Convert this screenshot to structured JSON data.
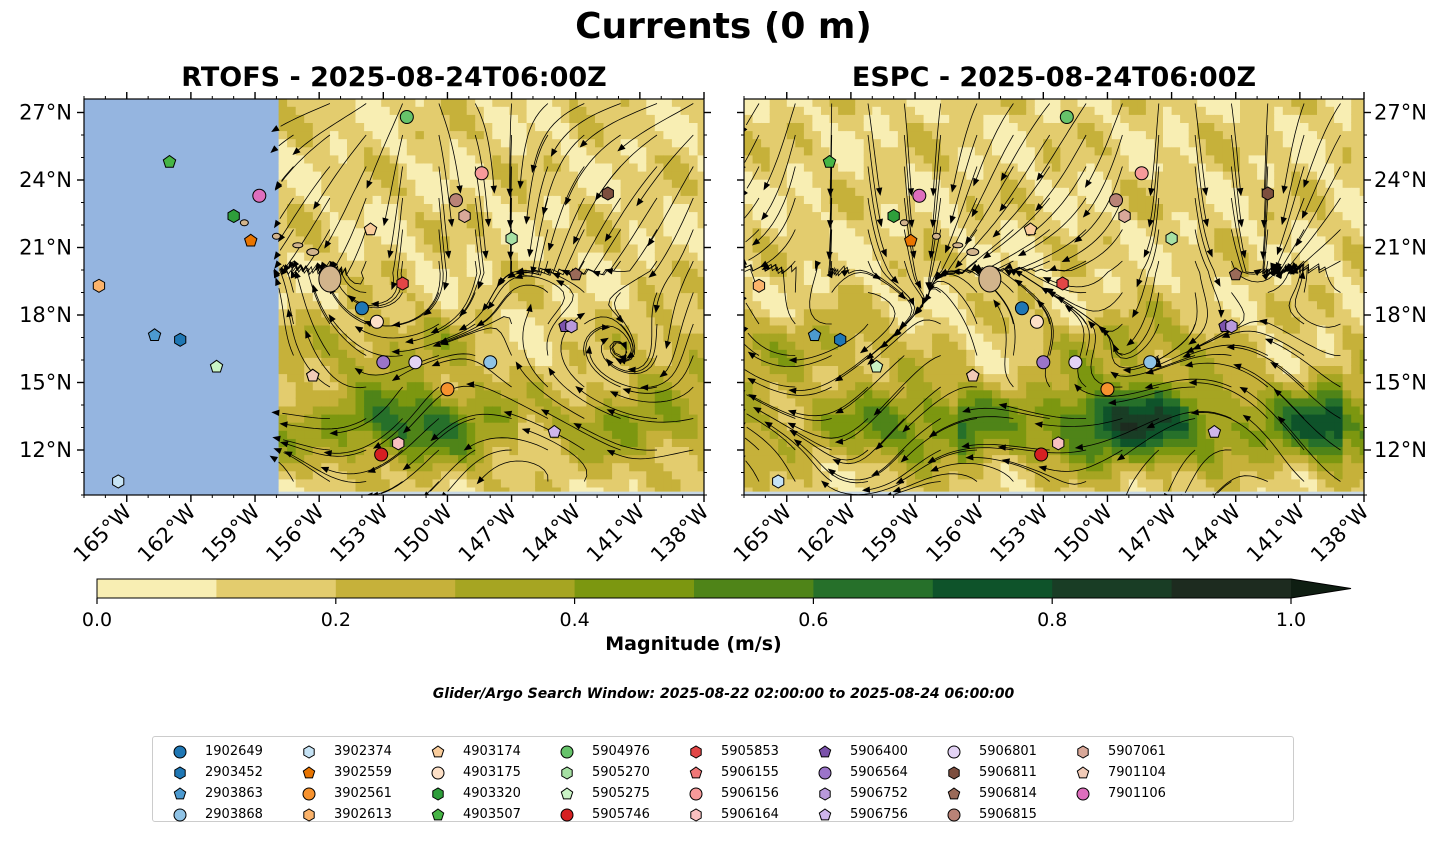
{
  "figure": {
    "title": "Currents (0 m)",
    "search_window": "Glider/Argo Search Window: 2025-08-22 02:00:00 to 2025-08-24 06:00:00"
  },
  "chart_data": [
    {
      "type": "heatmap",
      "title": "RTOFS - 2025-08-24T06:00Z",
      "model": "RTOFS",
      "variable": "current magnitude with streamlines",
      "xlabel": "",
      "ylabel": "",
      "xlim": [
        -167,
        -138
      ],
      "ylim": [
        10,
        27.6
      ],
      "x_ticks": [
        -165,
        -162,
        -159,
        -156,
        -153,
        -150,
        -147,
        -144,
        -141,
        -138
      ],
      "x_tick_labels": [
        "165°W",
        "162°W",
        "159°W",
        "156°W",
        "153°W",
        "150°W",
        "147°W",
        "144°W",
        "141°W",
        "138°W"
      ],
      "y_ticks": [
        12,
        15,
        18,
        21,
        24,
        27
      ],
      "y_tick_labels": [
        "12°N",
        "15°N",
        "18°N",
        "21°N",
        "24°N",
        "27°N"
      ],
      "data_extent_lon": [
        -157.9,
        -138
      ],
      "strong_current_core": {
        "lat": 13,
        "lon_range": [
          -158,
          -147
        ],
        "max_magnitude": 0.75
      }
    },
    {
      "type": "heatmap",
      "title": "ESPC - 2025-08-24T06:00Z",
      "model": "ESPC",
      "variable": "current magnitude with streamlines",
      "xlabel": "",
      "ylabel": "",
      "xlim": [
        -167,
        -138
      ],
      "ylim": [
        10,
        27.6
      ],
      "x_ticks": [
        -165,
        -162,
        -159,
        -156,
        -153,
        -150,
        -147,
        -144,
        -141,
        -138
      ],
      "x_tick_labels": [
        "165°W",
        "162°W",
        "159°W",
        "156°W",
        "153°W",
        "150°W",
        "147°W",
        "144°W",
        "141°W",
        "138°W"
      ],
      "y_ticks": [
        12,
        15,
        18,
        21,
        24,
        27
      ],
      "y_tick_labels": [
        "12°N",
        "15°N",
        "18°N",
        "21°N",
        "24°N",
        "27°N"
      ],
      "data_extent_lon": [
        -167,
        -138
      ],
      "strong_current_core": {
        "lat": 13,
        "lon_range": [
          -157,
          -139
        ],
        "max_magnitude": 0.95
      }
    }
  ],
  "colorbar": {
    "label": "Magnitude (m/s)",
    "levels": [
      0.0,
      0.1,
      0.2,
      0.3,
      0.4,
      0.5,
      0.6,
      0.7,
      0.8,
      0.9,
      1.0
    ],
    "tick_values": [
      0.0,
      0.2,
      0.4,
      0.6,
      0.8,
      1.0
    ],
    "tick_labels": [
      "0.0",
      "0.2",
      "0.4",
      "0.6",
      "0.8",
      "1.0"
    ],
    "colors": [
      "#f8eeb3",
      "#e3cc6e",
      "#c6b13a",
      "#a6a522",
      "#7c9710",
      "#4f8418",
      "#26702a",
      "#0e532a",
      "#193d25",
      "#1d2b1f"
    ],
    "extend": "max"
  },
  "floats": [
    {
      "id": "1902649",
      "marker": "circle",
      "color": "#1f77b4",
      "lat": 18.3,
      "lon": -154.0
    },
    {
      "id": "2903452",
      "marker": "hexagon",
      "color": "#1f77b4",
      "lat": 16.9,
      "lon": -162.5
    },
    {
      "id": "2903863",
      "marker": "pentagon",
      "color": "#4c9ad0",
      "lat": 17.1,
      "lon": -163.7
    },
    {
      "id": "2903868",
      "marker": "circle",
      "color": "#8fc3e6",
      "lat": 15.9,
      "lon": -148.0
    },
    {
      "id": "3902374",
      "marker": "hexagon",
      "color": "#c6e3f5",
      "lat": 10.6,
      "lon": -165.4
    },
    {
      "id": "3902559",
      "marker": "pentagon",
      "color": "#e87400",
      "lat": 21.3,
      "lon": -159.2
    },
    {
      "id": "3902561",
      "marker": "circle",
      "color": "#f7922e",
      "lat": 14.7,
      "lon": -150.0
    },
    {
      "id": "3902613",
      "marker": "hexagon",
      "color": "#fbb36b",
      "lat": 19.3,
      "lon": -166.3
    },
    {
      "id": "4903174",
      "marker": "pentagon",
      "color": "#f9cc9b",
      "lat": 21.8,
      "lon": -153.6
    },
    {
      "id": "4903175",
      "marker": "circle",
      "color": "#fde0c7",
      "lat": 17.7,
      "lon": -153.3
    },
    {
      "id": "4903320",
      "marker": "hexagon",
      "color": "#2e9e3b",
      "lat": 22.4,
      "lon": -160.0
    },
    {
      "id": "4903507",
      "marker": "pentagon",
      "color": "#46b545",
      "lat": 24.8,
      "lon": -163.0
    },
    {
      "id": "5904976",
      "marker": "circle",
      "color": "#66c36a",
      "lat": 26.8,
      "lon": -151.9
    },
    {
      "id": "5905270",
      "marker": "hexagon",
      "color": "#a6e0a3",
      "lat": 21.4,
      "lon": -147.0
    },
    {
      "id": "5905275",
      "marker": "pentagon",
      "color": "#caf4c6",
      "lat": 15.7,
      "lon": -160.8
    },
    {
      "id": "5905746",
      "marker": "circle",
      "color": "#d62022",
      "lat": 11.8,
      "lon": -153.1
    },
    {
      "id": "5905853",
      "marker": "hexagon",
      "color": "#e24646",
      "lat": 19.4,
      "lon": -152.1
    },
    {
      "id": "5906155",
      "marker": "pentagon",
      "color": "#ef7777",
      "lat": 15.3,
      "lon": -156.3
    },
    {
      "id": "5906156",
      "marker": "circle",
      "color": "#f79a9a",
      "lat": 24.3,
      "lon": -148.4
    },
    {
      "id": "5906164",
      "marker": "hexagon",
      "color": "#f9c0c0",
      "lat": 12.3,
      "lon": -152.3
    },
    {
      "id": "5906400",
      "marker": "pentagon",
      "color": "#7b52ab",
      "lat": 17.5,
      "lon": -144.5
    },
    {
      "id": "5906564",
      "marker": "circle",
      "color": "#9b74c9",
      "lat": 15.9,
      "lon": -153.0
    },
    {
      "id": "5906752",
      "marker": "hexagon",
      "color": "#b999dc",
      "lat": 17.5,
      "lon": -144.2
    },
    {
      "id": "5906756",
      "marker": "pentagon",
      "color": "#cfb6ec",
      "lat": 12.8,
      "lon": -145.0
    },
    {
      "id": "5906801",
      "marker": "circle",
      "color": "#e3d3f5",
      "lat": 15.9,
      "lon": -151.5
    },
    {
      "id": "5906811",
      "marker": "hexagon",
      "color": "#7d4e3e",
      "lat": 23.4,
      "lon": -142.5
    },
    {
      "id": "5906814",
      "marker": "pentagon",
      "color": "#9a6a58",
      "lat": 19.8,
      "lon": -144.0
    },
    {
      "id": "5906815",
      "marker": "circle",
      "color": "#b98377",
      "lat": 23.1,
      "lon": -149.6
    },
    {
      "id": "5907061",
      "marker": "hexagon",
      "color": "#d9a899",
      "lat": 22.4,
      "lon": -149.2
    },
    {
      "id": "7901104",
      "marker": "pentagon",
      "color": "#f2cbb8",
      "lat": 15.3,
      "lon": -156.3
    },
    {
      "id": "7901106",
      "marker": "circle",
      "color": "#de6ebd",
      "lat": 23.3,
      "lon": -158.8
    }
  ]
}
